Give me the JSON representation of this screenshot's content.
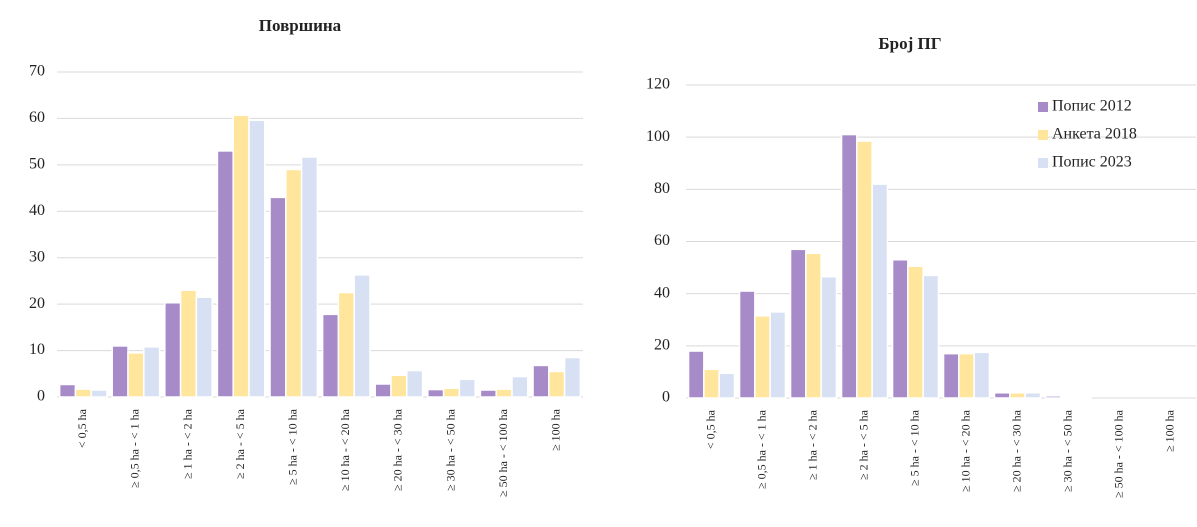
{
  "chart_data": [
    {
      "type": "bar",
      "title": "Површина",
      "categories": [
        "< 0,5 ha",
        "≥ 0,5 ha - < 1 ha",
        "≥ 1 ha - < 2 ha",
        "≥ 2 ha - < 5 ha",
        "≥ 5 ha - < 10 ha",
        "≥ 10 ha - < 20 ha",
        "≥ 20 ha - < 30 ha",
        "≥ 30 ha - < 50 ha",
        "≥ 50 ha - < 100 ha",
        "≥ 100 ha"
      ],
      "series": [
        {
          "color": "#a78bc9",
          "values": [
            2.7,
            11,
            20.3,
            53,
            43,
            17.8,
            2.8,
            1.6,
            1.5,
            6.8
          ]
        },
        {
          "color": "#ffe69c",
          "values": [
            1.7,
            9.5,
            23,
            60.7,
            49,
            22.5,
            4.7,
            1.9,
            1.7,
            5.5
          ]
        },
        {
          "color": "#d7e1f3",
          "values": [
            1.5,
            10.8,
            21.5,
            59.6,
            51.7,
            26.3,
            5.7,
            3.8,
            4.4,
            8.5
          ]
        }
      ],
      "ylim": [
        0,
        70
      ],
      "yticks": [
        0,
        10,
        20,
        30,
        40,
        50,
        60,
        70
      ],
      "grid": true
    },
    {
      "type": "bar",
      "title": "Број ПГ",
      "categories": [
        "< 0,5 ha",
        "≥ 0,5 ha - < 1 ha",
        "≥ 1 ha - < 2 ha",
        "≥ 2 ha - < 5 ha",
        "≥ 5 ha - < 10 ha",
        "≥ 10 ha - < 20 ha",
        "≥ 20 ha - < 30 ha",
        "≥ 30 ha - < 50 ha",
        "≥ 50 ha - < 100 ha",
        "≥ 100 ha"
      ],
      "series": [
        {
          "name": "Попис 2012",
          "color": "#a78bc9",
          "values": [
            18,
            41,
            57,
            101,
            53,
            17,
            2,
            0.8,
            0,
            0
          ]
        },
        {
          "name": "Анкета 2018",
          "color": "#ffe69c",
          "values": [
            11,
            31.5,
            55.5,
            98.5,
            50.5,
            17,
            2,
            0.5,
            0,
            0
          ]
        },
        {
          "name": "Попис 2023",
          "color": "#d7e1f3",
          "values": [
            9.5,
            33,
            46.5,
            82,
            47,
            17.5,
            2,
            0.5,
            0,
            0
          ]
        }
      ],
      "ylim": [
        0,
        120
      ],
      "yticks": [
        0,
        20,
        40,
        60,
        80,
        100,
        120
      ],
      "grid": true,
      "legend": "top-right"
    }
  ]
}
